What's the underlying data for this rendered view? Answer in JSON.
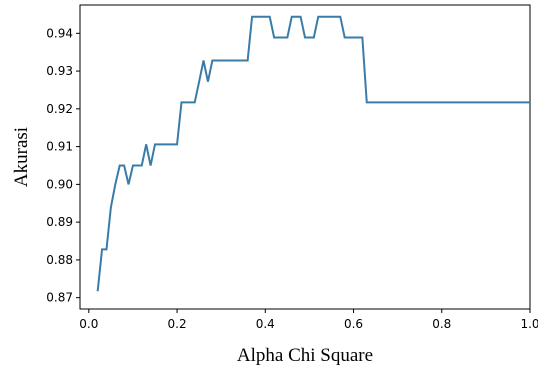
{
  "chart_data": {
    "type": "line",
    "title": "",
    "xlabel": "Alpha Chi Square",
    "ylabel": "Akurasi",
    "xlim": [
      -0.02,
      1.0
    ],
    "ylim": [
      0.867,
      0.9475
    ],
    "xticks": [
      0.0,
      0.2,
      0.4,
      0.6,
      0.8,
      1.0
    ],
    "xtick_labels": [
      "0.0",
      "0.2",
      "0.4",
      "0.6",
      "0.8",
      "1.0"
    ],
    "yticks": [
      0.87,
      0.88,
      0.89,
      0.9,
      0.91,
      0.92,
      0.93,
      0.94
    ],
    "ytick_labels": [
      "0.87",
      "0.88",
      "0.89",
      "0.90",
      "0.91",
      "0.92",
      "0.93",
      "0.94"
    ],
    "grid": false,
    "line_color": "#3a7ca8",
    "series": [
      {
        "x": [
          0.02,
          0.03,
          0.04,
          0.05,
          0.06,
          0.07,
          0.08,
          0.09,
          0.1,
          0.11,
          0.12,
          0.13,
          0.14,
          0.15,
          0.16,
          0.17,
          0.18,
          0.19,
          0.2,
          0.21,
          0.22,
          0.23,
          0.24,
          0.25,
          0.26,
          0.27,
          0.28,
          0.29,
          0.3,
          0.31,
          0.32,
          0.33,
          0.34,
          0.35,
          0.36,
          0.37,
          0.38,
          0.39,
          0.4,
          0.41,
          0.42,
          0.43,
          0.44,
          0.45,
          0.46,
          0.47,
          0.48,
          0.49,
          0.5,
          0.51,
          0.52,
          0.53,
          0.54,
          0.55,
          0.56,
          0.57,
          0.58,
          0.59,
          0.6,
          0.61,
          0.62,
          0.63,
          0.64,
          0.65,
          0.66,
          0.67,
          0.68,
          0.69,
          0.7,
          0.71,
          0.72,
          0.73,
          0.74,
          0.75,
          0.76,
          0.77,
          0.78,
          0.79,
          0.8,
          0.81,
          0.82,
          0.83,
          0.84,
          0.85,
          0.86,
          0.87,
          0.88,
          0.89,
          0.9,
          0.91,
          0.92,
          0.93,
          0.94,
          0.95,
          0.96,
          0.97,
          0.98,
          0.99,
          1.0
        ],
        "y": [
          0.8717,
          0.8828,
          0.8828,
          0.8939,
          0.9,
          0.905,
          0.905,
          0.9,
          0.905,
          0.905,
          0.905,
          0.9106,
          0.905,
          0.9106,
          0.9106,
          0.9106,
          0.9106,
          0.9106,
          0.9106,
          0.9217,
          0.9217,
          0.9217,
          0.9217,
          0.9272,
          0.9328,
          0.9272,
          0.9328,
          0.9328,
          0.9328,
          0.9328,
          0.9328,
          0.9328,
          0.9328,
          0.9328,
          0.9328,
          0.9444,
          0.9444,
          0.9444,
          0.9444,
          0.9444,
          0.9389,
          0.9389,
          0.9389,
          0.9389,
          0.9444,
          0.9444,
          0.9444,
          0.9389,
          0.9389,
          0.9389,
          0.9444,
          0.9444,
          0.9444,
          0.9444,
          0.9444,
          0.9444,
          0.9389,
          0.9389,
          0.9389,
          0.9389,
          0.9389,
          0.9217,
          0.9217,
          0.9217,
          0.9217,
          0.9217,
          0.9217,
          0.9217,
          0.9217,
          0.9217,
          0.9217,
          0.9217,
          0.9217,
          0.9217,
          0.9217,
          0.9217,
          0.9217,
          0.9217,
          0.9217,
          0.9217,
          0.9217,
          0.9217,
          0.9217,
          0.9217,
          0.9217,
          0.9217,
          0.9217,
          0.9217,
          0.9217,
          0.9217,
          0.9217,
          0.9217,
          0.9217,
          0.9217,
          0.9217,
          0.9217,
          0.9217,
          0.9217,
          0.9217
        ]
      }
    ]
  }
}
